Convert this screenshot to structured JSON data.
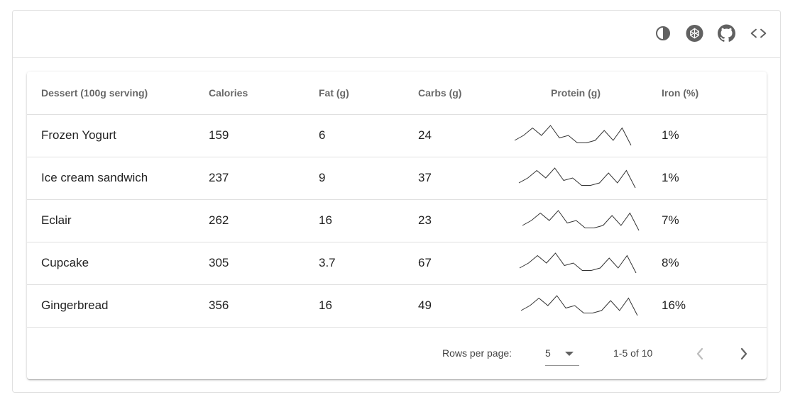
{
  "toolbar": {
    "icons": [
      "invert-colors-icon",
      "codepen-icon",
      "github-icon",
      "code-icon"
    ]
  },
  "table": {
    "headers": {
      "name": "Dessert (100g serving)",
      "calories": "Calories",
      "fat": "Fat (g)",
      "carbs": "Carbs (g)",
      "protein": "Protein (g)",
      "iron": "Iron (%)"
    },
    "rows": [
      {
        "name": "Frozen Yogurt",
        "calories": "159",
        "fat": "6",
        "carbs": "24",
        "iron": "1%"
      },
      {
        "name": "Ice cream sandwich",
        "calories": "237",
        "fat": "9",
        "carbs": "37",
        "iron": "1%"
      },
      {
        "name": "Eclair",
        "calories": "262",
        "fat": "16",
        "carbs": "23",
        "iron": "7%"
      },
      {
        "name": "Cupcake",
        "calories": "305",
        "fat": "3.7",
        "carbs": "67",
        "iron": "8%"
      },
      {
        "name": "Gingerbread",
        "calories": "356",
        "fat": "16",
        "carbs": "49",
        "iron": "16%"
      }
    ],
    "protein_sparkline": [
      0,
      2,
      5,
      2,
      6,
      1,
      2,
      -1,
      -1,
      0,
      4,
      0,
      5,
      -2
    ]
  },
  "pagination": {
    "rows_per_page_label": "Rows per page:",
    "rows_per_page_value": "5",
    "range_text": "1-5 of 10",
    "prev_disabled": true,
    "next_disabled": false
  }
}
